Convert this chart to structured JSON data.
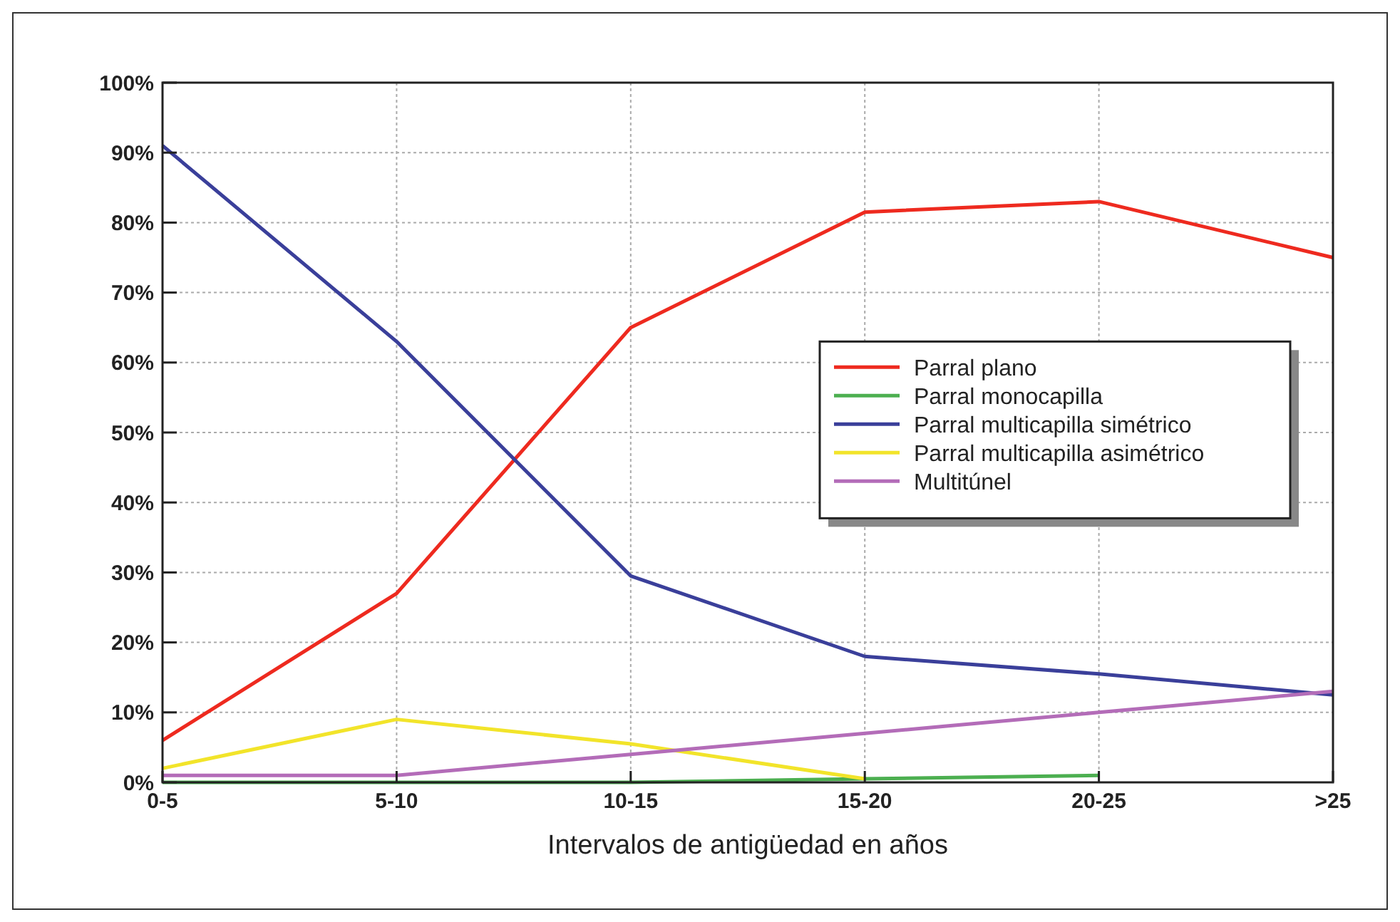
{
  "chart_data": {
    "type": "line",
    "xlabel": "Intervalos de antigüedad en años",
    "categories": [
      "0-5",
      "5-10",
      "10-15",
      "15-20",
      "20-25",
      ">25"
    ],
    "series": [
      {
        "name": "Parral plano",
        "color": "#ee2a1f",
        "values": [
          6,
          27,
          65,
          81.5,
          83,
          75
        ]
      },
      {
        "name": "Parral monocapilla",
        "color": "#4caf50",
        "values": [
          0,
          0,
          0,
          0.5,
          1,
          null
        ]
      },
      {
        "name": "Parral multicapilla simétrico",
        "color": "#3a3f9a",
        "values": [
          91,
          63,
          29.5,
          18,
          15.5,
          12.5
        ]
      },
      {
        "name": "Parral multicapilla asimétrico",
        "color": "#f2e42a",
        "values": [
          2,
          9,
          5.5,
          0.5,
          null,
          null
        ]
      },
      {
        "name": "Multitúnel",
        "color": "#b36cb8",
        "values": [
          1,
          1,
          4,
          7,
          10,
          13
        ]
      }
    ],
    "ylim": [
      0,
      100
    ],
    "yticks": [
      {
        "value": 0,
        "label": "0%"
      },
      {
        "value": 10,
        "label": "10%"
      },
      {
        "value": 20,
        "label": "20%"
      },
      {
        "value": 30,
        "label": "30%"
      },
      {
        "value": 40,
        "label": "40%"
      },
      {
        "value": 50,
        "label": "50%"
      },
      {
        "value": 60,
        "label": "60%"
      },
      {
        "value": 70,
        "label": "70%"
      },
      {
        "value": 80,
        "label": "80%"
      },
      {
        "value": 90,
        "label": "90%"
      },
      {
        "value": 100,
        "label": "100%"
      }
    ],
    "grid": true,
    "legend": "right",
    "line_style": "solid",
    "marker": "none"
  }
}
